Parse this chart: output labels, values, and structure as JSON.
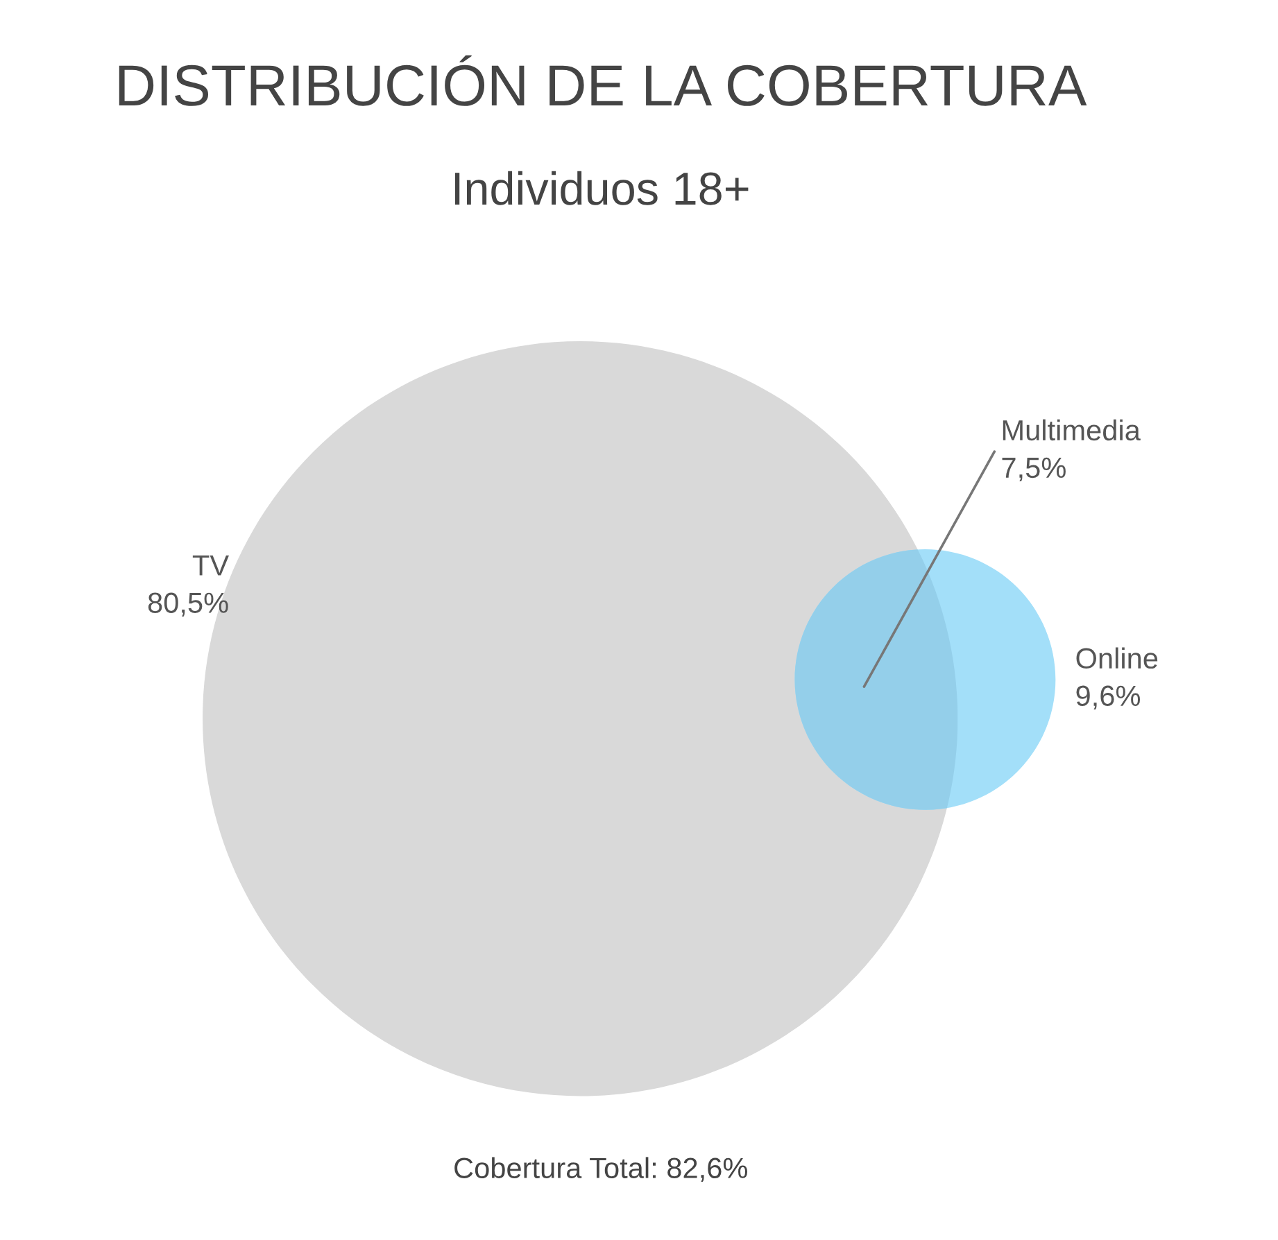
{
  "chart_data": {
    "type": "other",
    "title": "DISTRIBUCIÓN DE LA COBERTURA",
    "subtitle": "Individuos 18+",
    "categories": [
      "TV",
      "Online",
      "Multimedia"
    ],
    "values": [
      80.5,
      9.6,
      7.5
    ],
    "value_labels": [
      "80,5%",
      "9,6%",
      "7,5%"
    ],
    "colors": [
      "#d9d9d9",
      "#a3dff9",
      "#94cfea"
    ],
    "annotations": [
      "Cobertura Total: 82,6%"
    ]
  }
}
